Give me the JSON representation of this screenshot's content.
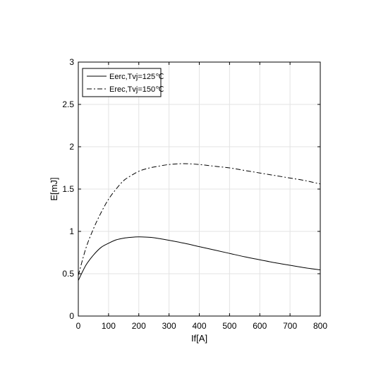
{
  "chart_data": {
    "type": "line",
    "xlabel": "If[A]",
    "ylabel": "E[mJ]",
    "xlim": [
      0,
      800
    ],
    "ylim": [
      0,
      3
    ],
    "xticks": [
      0,
      100,
      200,
      300,
      400,
      500,
      600,
      700,
      800
    ],
    "yticks": [
      0,
      0.5,
      1,
      1.5,
      2,
      2.5,
      3
    ],
    "xtick_labels": [
      "0",
      "100",
      "200",
      "300",
      "400",
      "500",
      "600",
      "700",
      "800"
    ],
    "ytick_labels": [
      "0",
      "0.5",
      "1",
      "1.5",
      "2",
      "2.5",
      "3"
    ],
    "grid": true,
    "legend_position": "top-left",
    "series": [
      {
        "name": "Eerc,Tvj=125℃",
        "style": "solid",
        "color": "#000000",
        "x": [
          0,
          25,
          50,
          75,
          100,
          125,
          150,
          175,
          200,
          225,
          250,
          300,
          350,
          400,
          450,
          500,
          550,
          600,
          650,
          700,
          750,
          800
        ],
        "y": [
          0.42,
          0.6,
          0.72,
          0.81,
          0.86,
          0.9,
          0.92,
          0.93,
          0.935,
          0.932,
          0.925,
          0.895,
          0.86,
          0.82,
          0.78,
          0.74,
          0.7,
          0.665,
          0.63,
          0.6,
          0.57,
          0.545
        ]
      },
      {
        "name": "Erec,Tvj=150℃",
        "style": "dashdot",
        "color": "#000000",
        "x": [
          0,
          25,
          50,
          75,
          100,
          125,
          150,
          175,
          200,
          225,
          250,
          300,
          350,
          400,
          450,
          500,
          550,
          600,
          650,
          700,
          750,
          800
        ],
        "y": [
          0.48,
          0.8,
          1.03,
          1.22,
          1.38,
          1.5,
          1.6,
          1.66,
          1.71,
          1.74,
          1.76,
          1.79,
          1.8,
          1.79,
          1.77,
          1.75,
          1.72,
          1.69,
          1.66,
          1.63,
          1.6,
          1.56
        ]
      }
    ]
  }
}
